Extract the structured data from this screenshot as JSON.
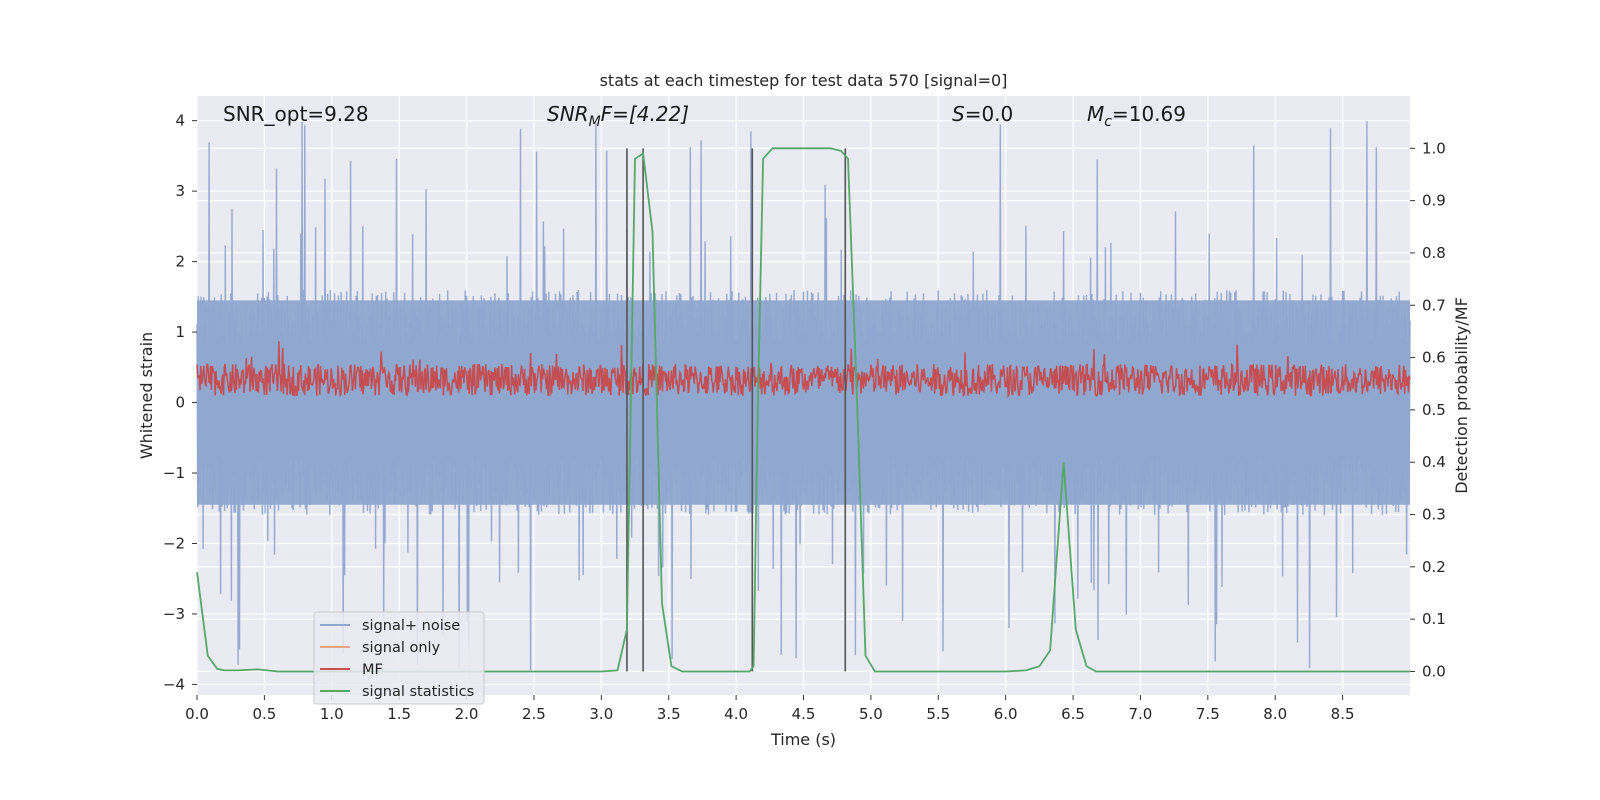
{
  "chart_data": {
    "type": "line",
    "title": "stats at each timestep for test data 570 [signal=0]",
    "xlabel": "Time (s)",
    "ylabel": "Whitened strain",
    "y2label": "Detection probability/MF",
    "xlim": [
      0,
      9
    ],
    "ylim": [
      -4.15,
      4.35
    ],
    "y2lim": [
      -0.045,
      1.1
    ],
    "xticks": [
      "0.0",
      "0.5",
      "1.0",
      "1.5",
      "2.0",
      "2.5",
      "3.0",
      "3.5",
      "4.0",
      "4.5",
      "5.0",
      "5.5",
      "6.0",
      "6.5",
      "7.0",
      "7.5",
      "8.0",
      "8.5"
    ],
    "yticks": [
      "4",
      "3",
      "2",
      "1",
      "0",
      "−1",
      "−2",
      "−3",
      "−4"
    ],
    "y2ticks": [
      "1.0",
      "0.9",
      "0.8",
      "0.7",
      "0.6",
      "0.5",
      "0.4",
      "0.3",
      "0.2",
      "0.1",
      "0.0"
    ],
    "grid": true,
    "legend_position": "lower-left",
    "annotations": {
      "snr_opt": "SNR_opt=9.28",
      "snr_mf_main": "SNR",
      "snr_mf_sub": "M",
      "snr_mf_rest": "F=[4.22]",
      "s_var": "S",
      "s_rest": "=0.0",
      "mc_main": "M",
      "mc_sub": "c",
      "mc_rest": "=10.69"
    },
    "vlines": [
      3.19,
      3.31,
      4.12,
      4.81
    ],
    "series": [
      {
        "name": "signal+ noise",
        "color": "#8fa6cf",
        "kind": "noise",
        "envelope_pos": 1.6,
        "envelope_neg": -1.6,
        "peak_max": 4.0,
        "peak_min": -3.8
      },
      {
        "name": "signal only",
        "color": "#e8a488",
        "kind": "flat",
        "values": []
      },
      {
        "name": "MF",
        "color": "#c44e52",
        "kind": "mf",
        "baseline": 0.3,
        "amplitude": 0.35
      },
      {
        "name": "signal statistics",
        "color": "#55a868",
        "kind": "line",
        "x": [
          0.0,
          0.08,
          0.15,
          0.2,
          0.3,
          0.45,
          0.6,
          1.0,
          2.0,
          3.0,
          3.12,
          3.19,
          3.25,
          3.31,
          3.38,
          3.45,
          3.52,
          3.6,
          3.8,
          4.1,
          4.13,
          4.16,
          4.2,
          4.27,
          4.5,
          4.7,
          4.78,
          4.83,
          4.9,
          4.96,
          5.03,
          5.2,
          6.0,
          6.15,
          6.25,
          6.33,
          6.43,
          6.52,
          6.6,
          6.67,
          6.75,
          7.0,
          8.0,
          9.0
        ],
        "y": [
          0.19,
          0.03,
          0.005,
          0.002,
          0.002,
          0.004,
          0.0,
          0.0,
          0.0,
          0.0,
          0.002,
          0.08,
          0.98,
          0.99,
          0.84,
          0.13,
          0.01,
          0.0,
          0.0,
          0.0,
          0.01,
          0.5,
          0.98,
          1.0,
          1.0,
          1.0,
          0.995,
          0.98,
          0.5,
          0.03,
          0.0,
          0.0,
          0.0,
          0.002,
          0.01,
          0.04,
          0.4,
          0.08,
          0.01,
          0.0,
          0.0,
          0.0,
          0.0,
          0.0
        ]
      }
    ]
  }
}
